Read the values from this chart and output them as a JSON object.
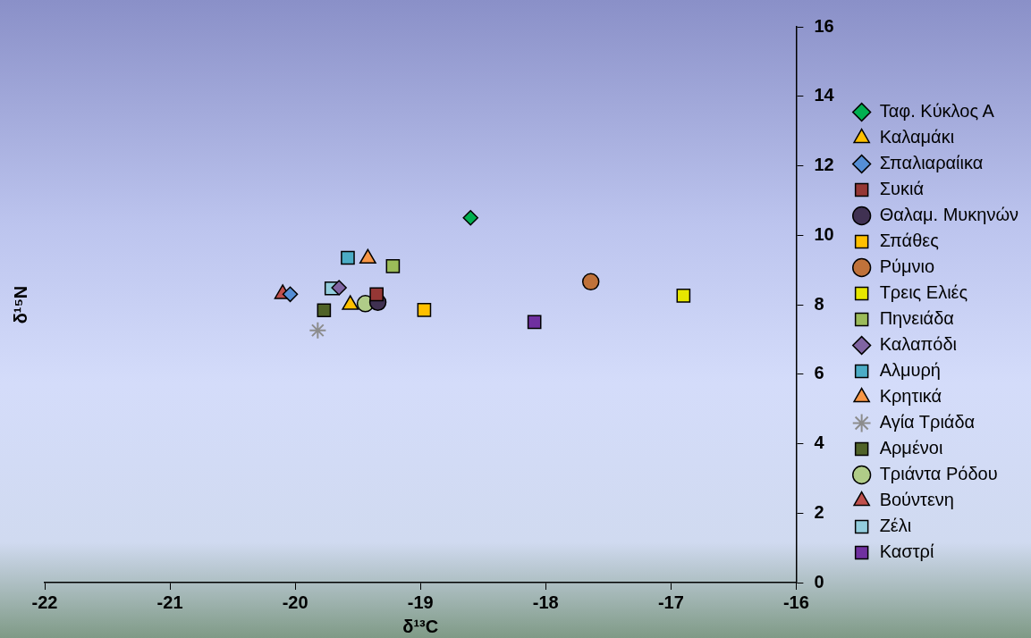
{
  "chart_data": {
    "type": "scatter",
    "xlabel": "δ¹³C",
    "ylabel": "δ¹⁵N",
    "xlim": [
      -22,
      -16
    ],
    "xticks": [
      -22,
      -21,
      -20,
      -19,
      -18,
      -17,
      -16
    ],
    "ylim": [
      0,
      16
    ],
    "yticks": [
      0,
      2,
      4,
      6,
      8,
      10,
      12,
      14,
      16
    ],
    "grid": false,
    "legend": "right",
    "series": [
      {
        "name": "Ταφ. Κύκλος Α",
        "color": "#00b050",
        "marker": "diamond",
        "x": [
          -18.6
        ],
        "values": [
          10.5
        ]
      },
      {
        "name": "Καλαμάκι",
        "color": "#ffc000",
        "marker": "triangle",
        "x": [
          -19.56
        ],
        "values": [
          8.0
        ]
      },
      {
        "name": "Σπαλιαραίικα",
        "color": "#558ed5",
        "marker": "diamond",
        "x": [
          -20.04
        ],
        "values": [
          8.3
        ]
      },
      {
        "name": "Συκιά",
        "color": "#953735",
        "marker": "square",
        "x": [
          -19.35
        ],
        "values": [
          8.3
        ]
      },
      {
        "name": "Θαλαμ. Μυκηνών",
        "color": "#403152",
        "marker": "circle",
        "x": [
          -19.34
        ],
        "values": [
          8.07
        ]
      },
      {
        "name": "Σπάθες",
        "color": "#ffc000",
        "marker": "square",
        "x": [
          -18.97
        ],
        "values": [
          7.85
        ]
      },
      {
        "name": "Ρύμνιο",
        "color": "#c0723a",
        "marker": "circle",
        "x": [
          -17.64
        ],
        "values": [
          8.66
        ]
      },
      {
        "name": "Τρεις Ελιές",
        "color": "#e6e600",
        "marker": "square",
        "x": [
          -16.9
        ],
        "values": [
          8.26
        ]
      },
      {
        "name": "Πηνειάδα",
        "color": "#9bbb59",
        "marker": "square",
        "x": [
          -19.22
        ],
        "values": [
          9.11
        ]
      },
      {
        "name": "Καλαπόδι",
        "color": "#8064a2",
        "marker": "diamond",
        "x": [
          -19.65
        ],
        "values": [
          8.49
        ]
      },
      {
        "name": "Αλμυρή",
        "color": "#4bacc6",
        "marker": "square",
        "x": [
          -19.58
        ],
        "values": [
          9.35
        ]
      },
      {
        "name": "Κρητικά",
        "color": "#f79646",
        "marker": "triangle",
        "x": [
          -19.42
        ],
        "values": [
          9.33
        ]
      },
      {
        "name": "Αγία Τριάδα",
        "color": "#8c8c8c",
        "marker": "cross",
        "x": [
          -19.82
        ],
        "values": [
          7.26
        ]
      },
      {
        "name": "Αρμένοι",
        "color": "#4f6228",
        "marker": "square",
        "x": [
          -19.77
        ],
        "values": [
          7.84
        ]
      },
      {
        "name": "Τριάντα Ρόδου",
        "color": "#b0cc88",
        "marker": "circle",
        "x": [
          -19.44
        ],
        "values": [
          8.03
        ]
      },
      {
        "name": "Βούντενη",
        "color": "#c0504d",
        "marker": "triangle",
        "x": [
          -20.1
        ],
        "values": [
          8.31
        ]
      },
      {
        "name": "Ζέλι",
        "color": "#93cddd",
        "marker": "square",
        "x": [
          -19.71
        ],
        "values": [
          8.47
        ]
      },
      {
        "name": "Καστρί",
        "color": "#7030a0",
        "marker": "square",
        "x": [
          -18.09
        ],
        "values": [
          7.5
        ]
      }
    ]
  }
}
